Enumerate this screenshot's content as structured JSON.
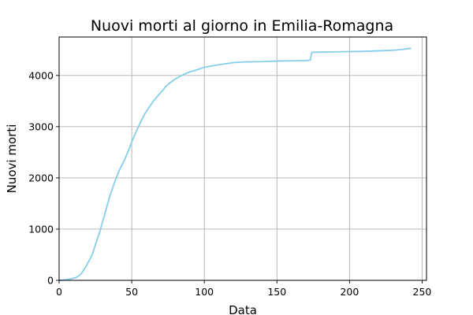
{
  "chart_data": {
    "type": "line",
    "title": "Nuovi morti al giorno in Emilia-Romagna",
    "xlabel": "Data",
    "ylabel": "Nuovi morti",
    "xlim": [
      0,
      253
    ],
    "ylim": [
      0,
      4750
    ],
    "xticks": [
      0,
      50,
      100,
      150,
      200,
      250
    ],
    "yticks": [
      0,
      1000,
      2000,
      3000,
      4000
    ],
    "grid": true,
    "series": [
      {
        "color": "#87ceeb",
        "x": [
          0,
          3,
          6,
          9,
          12,
          15,
          18,
          21,
          23,
          25,
          28,
          30,
          32,
          35,
          38,
          40,
          42,
          45,
          48,
          50,
          53,
          56,
          59,
          62,
          65,
          68,
          71,
          74,
          77,
          80,
          83,
          86,
          90,
          95,
          100,
          102,
          105,
          110,
          115,
          120,
          125,
          130,
          140,
          150,
          160,
          170,
          173,
          174,
          180,
          190,
          200,
          210,
          220,
          230,
          237,
          242
        ],
        "y": [
          0,
          5,
          15,
          35,
          60,
          120,
          250,
          400,
          520,
          700,
          950,
          1150,
          1350,
          1650,
          1900,
          2050,
          2180,
          2350,
          2550,
          2700,
          2900,
          3080,
          3250,
          3380,
          3500,
          3600,
          3700,
          3800,
          3870,
          3930,
          3980,
          4020,
          4070,
          4110,
          4160,
          4170,
          4185,
          4210,
          4230,
          4250,
          4260,
          4265,
          4270,
          4280,
          4285,
          4290,
          4300,
          4450,
          4455,
          4460,
          4465,
          4470,
          4480,
          4490,
          4510,
          4530
        ]
      }
    ]
  }
}
